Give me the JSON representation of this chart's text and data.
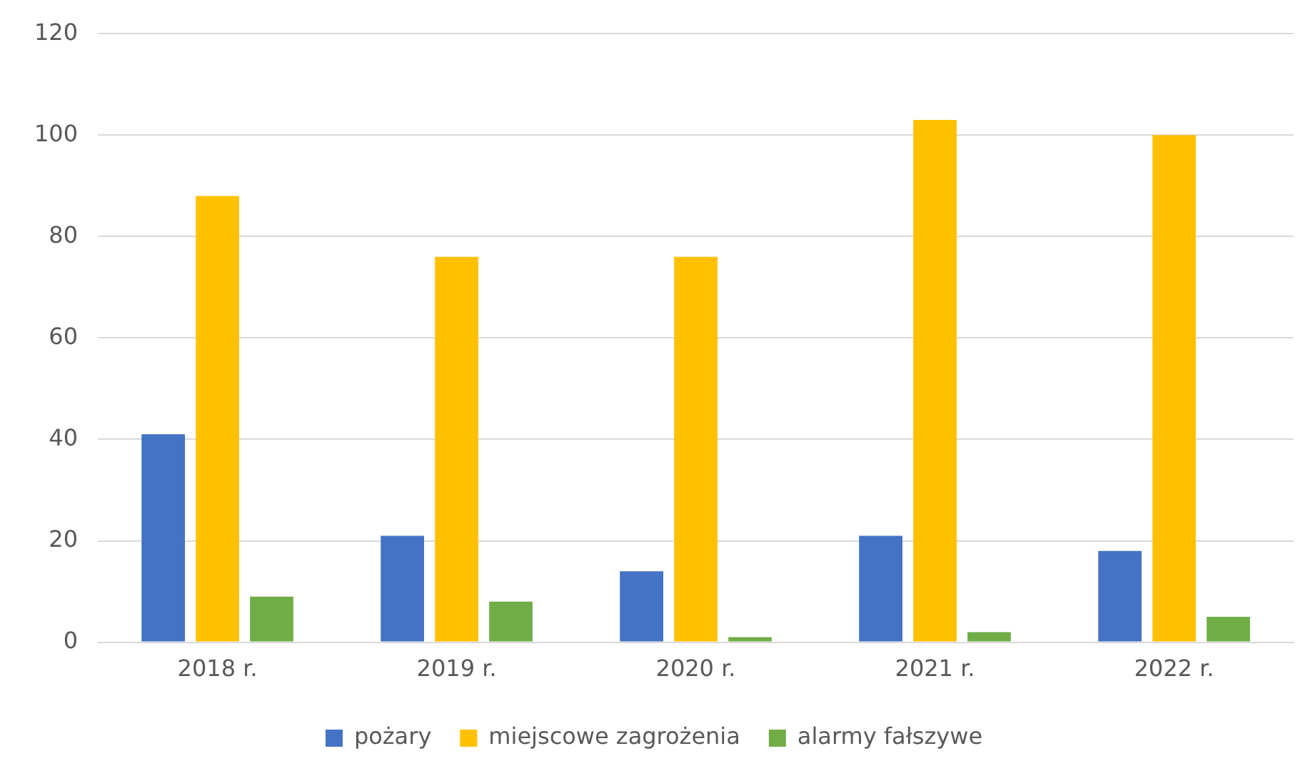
{
  "chart_data": {
    "type": "bar",
    "categories": [
      "2018 r.",
      "2019 r.",
      "2020 r.",
      "2021 r.",
      "2022 r."
    ],
    "series": [
      {
        "name": "pożary",
        "color": "#4472c4",
        "values": [
          41,
          21,
          14,
          21,
          18
        ]
      },
      {
        "name": "miejscowe zagrożenia",
        "color": "#ffc000",
        "values": [
          88,
          76,
          76,
          103,
          100
        ]
      },
      {
        "name": "alarmy fałszywe",
        "color": "#70ad47",
        "values": [
          9,
          8,
          1,
          2,
          5
        ]
      }
    ],
    "ylim": [
      0,
      120
    ],
    "yticks": [
      0,
      20,
      40,
      60,
      80,
      100,
      120
    ],
    "grid": "y",
    "legend": "bottom"
  }
}
